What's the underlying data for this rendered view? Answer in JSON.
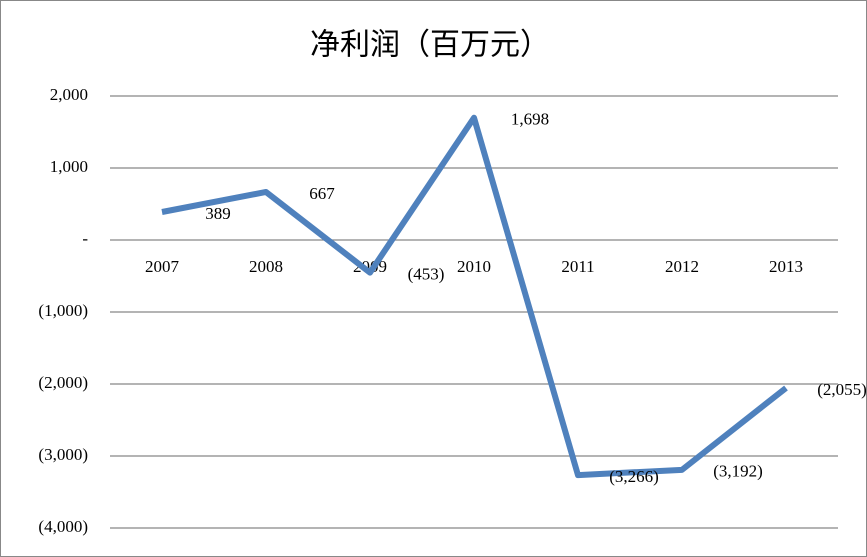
{
  "chart_data": {
    "type": "line",
    "title": "净利润（百万元）",
    "categories": [
      "2007",
      "2008",
      "2009",
      "2010",
      "2011",
      "2012",
      "2013"
    ],
    "values": [
      389,
      667,
      -453,
      1698,
      -3266,
      -3192,
      -2055
    ],
    "value_labels": [
      "389",
      "667",
      "(453)",
      "1,698",
      "(3,266)",
      "(3,192)",
      "(2,055)"
    ],
    "color": "#4f81bd",
    "ylim": [
      -4000,
      2000
    ],
    "yticks": [
      {
        "value": 2000,
        "label": "2,000"
      },
      {
        "value": 1000,
        "label": "1,000"
      },
      {
        "value": 0,
        "label": "-"
      },
      {
        "value": -1000,
        "label": "(1,000)"
      },
      {
        "value": -2000,
        "label": "(2,000)"
      },
      {
        "value": -3000,
        "label": "(3,000)"
      },
      {
        "value": -4000,
        "label": "(4,000)"
      }
    ],
    "grid": true
  }
}
